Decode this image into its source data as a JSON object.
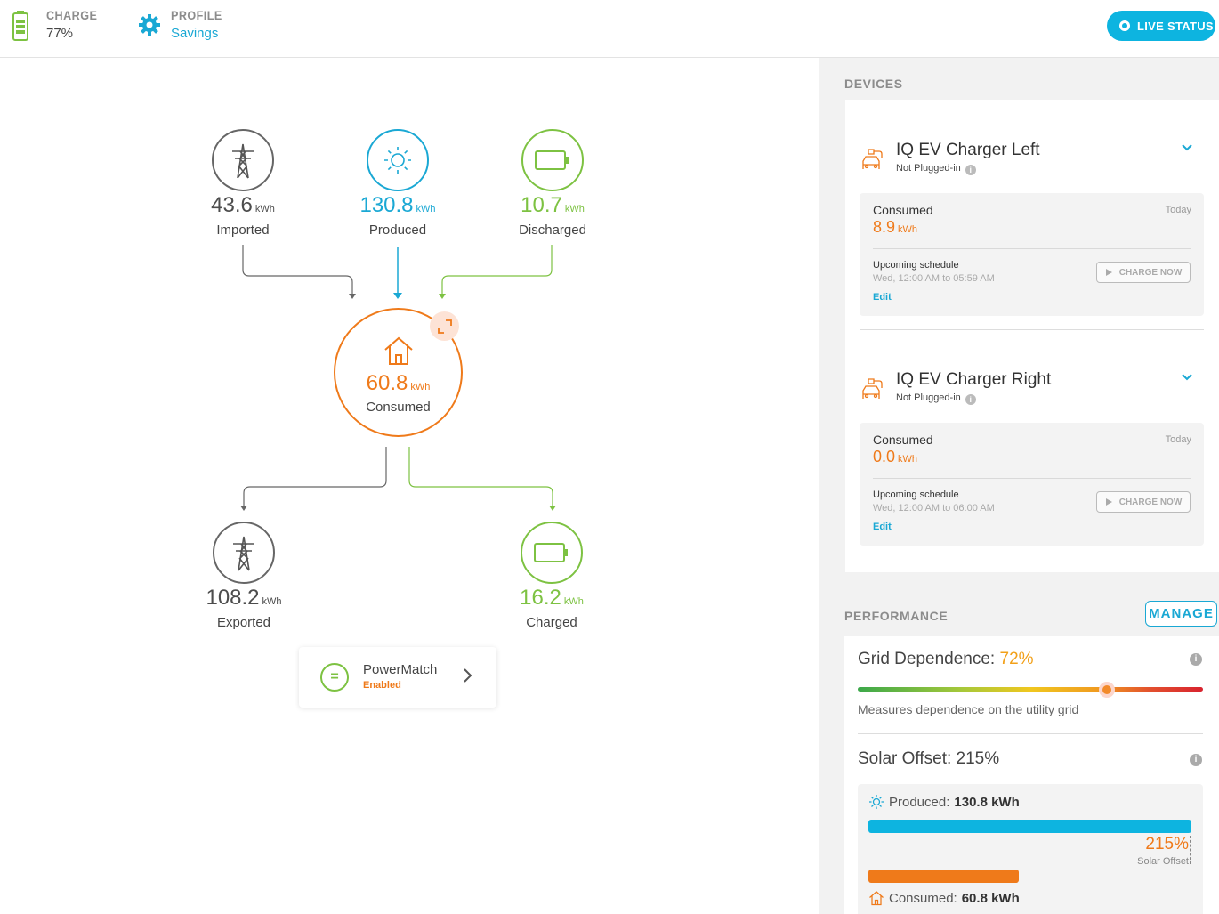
{
  "header": {
    "charge_label": "CHARGE",
    "charge_value": "77%",
    "profile_label": "PROFILE",
    "profile_value": "Savings",
    "live_status_label": "LIVE STATUS"
  },
  "energy_flow": {
    "unit": "kWh",
    "imported": {
      "value": "43.6",
      "label": "Imported"
    },
    "produced": {
      "value": "130.8",
      "label": "Produced"
    },
    "discharged": {
      "value": "10.7",
      "label": "Discharged"
    },
    "consumed": {
      "value": "60.8",
      "label": "Consumed"
    },
    "exported": {
      "value": "108.2",
      "label": "Exported"
    },
    "charged": {
      "value": "16.2",
      "label": "Charged"
    }
  },
  "powermatch": {
    "title": "PowerMatch",
    "status": "Enabled"
  },
  "devices": {
    "section_title": "DEVICES",
    "items": [
      {
        "name": "IQ EV Charger Left",
        "status": "Not Plugged-in",
        "consumed_label": "Consumed",
        "period": "Today",
        "consumed_value": "8.9",
        "unit": "kWh",
        "schedule_label": "Upcoming schedule",
        "schedule_time": "Wed, 12:00 AM to 05:59 AM",
        "edit_label": "Edit",
        "charge_now_label": "CHARGE NOW"
      },
      {
        "name": "IQ EV Charger Right",
        "status": "Not Plugged-in",
        "consumed_label": "Consumed",
        "period": "Today",
        "consumed_value": "0.0",
        "unit": "kWh",
        "schedule_label": "Upcoming schedule",
        "schedule_time": "Wed, 12:00 AM to 06:00 AM",
        "edit_label": "Edit",
        "charge_now_label": "CHARGE NOW"
      }
    ]
  },
  "performance": {
    "section_title": "PERFORMANCE",
    "manage_label": "MANAGE",
    "grid_dependence": {
      "label": "Grid Dependence:",
      "value": "72%",
      "level": 0.72,
      "description": "Measures dependence on the utility grid"
    },
    "solar_offset": {
      "title": "Solar Offset: 215%",
      "produced_label": "Produced:",
      "produced_value": "130.8 kWh",
      "consumed_label": "Consumed:",
      "consumed_value": "60.8 kWh",
      "offset_value": "215%",
      "offset_label": "Solar Offset",
      "produced_kwh": 130.8,
      "consumed_kwh": 60.8
    }
  },
  "colors": {
    "accent_blue": "#0db4e0",
    "orange": "#ef7a1a",
    "green": "#7dc242",
    "grey": "#4d4d4d"
  },
  "icons": {
    "charge": "battery-icon",
    "profile": "gear-icon",
    "grid": "transmission-tower-icon",
    "solar": "sun-icon",
    "battery": "battery-icon",
    "home": "house-icon",
    "ev": "ev-charger-icon"
  }
}
